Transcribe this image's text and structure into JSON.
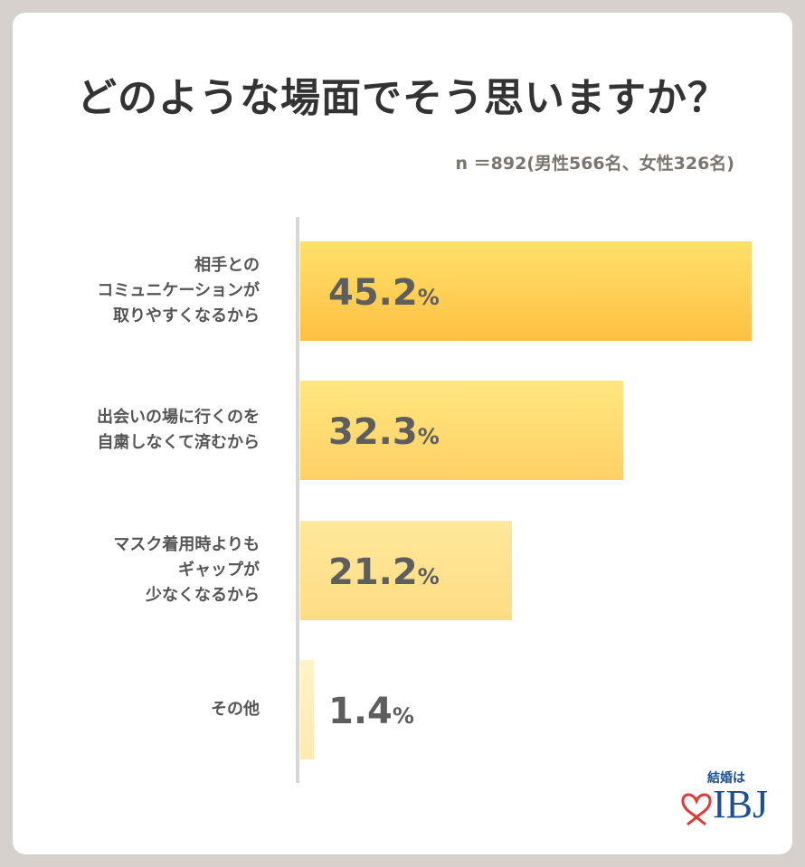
{
  "title": "どのような場面でそう思いますか？",
  "subtitle": "n ＝892(男性566名、女性326名)",
  "logo": {
    "tagline": "結婚は",
    "brand": "IBJ"
  },
  "chart_data": {
    "type": "bar",
    "orientation": "horizontal",
    "title": "どのような場面でそう思いますか？",
    "categories": [
      "相手との\nコミュニケーションが\n取りやすくなるから",
      "出会いの場に行くのを\n自粛しなくて済むから",
      "マスク着用時よりも\nギャップが\n少なくなるから",
      "その他"
    ],
    "values": [
      45.2,
      32.3,
      21.2,
      1.4
    ],
    "value_labels": [
      "45.2",
      "32.3",
      "21.2",
      "1.4"
    ],
    "unit": "%",
    "xlim": [
      0,
      45.2
    ],
    "grid": false,
    "colors": [
      [
        "#ffe16a",
        "#fdc042"
      ],
      [
        "#ffe680",
        "#fed065"
      ],
      [
        "#ffe89a",
        "#fedc84"
      ],
      [
        "#fff3c8",
        "#ffeab0"
      ]
    ]
  }
}
